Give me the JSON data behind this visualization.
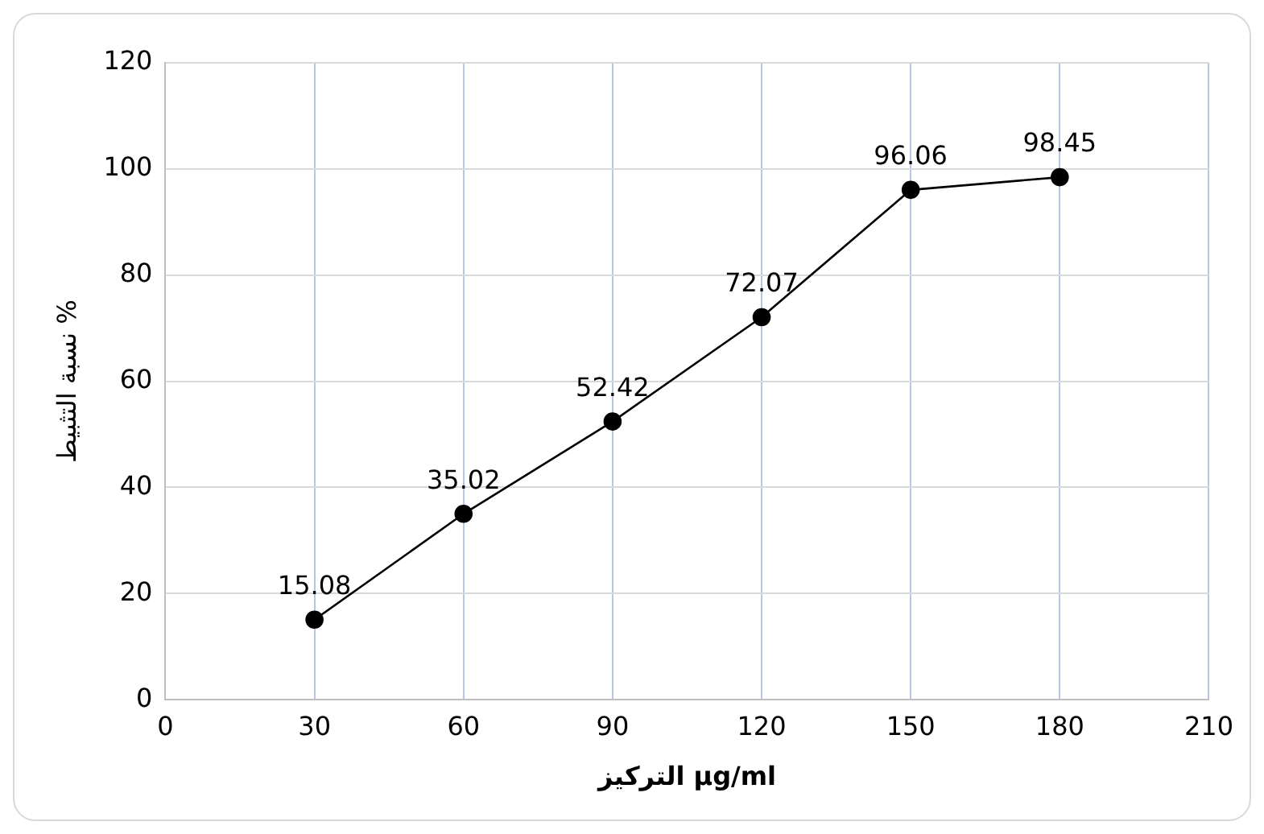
{
  "chart_data": {
    "type": "line",
    "xlabel": "التركيز µg/ml",
    "ylabel": "نسبة التثبيط %",
    "x": [
      30,
      60,
      90,
      120,
      150,
      180
    ],
    "series": [
      {
        "color": "#000000",
        "values": [
          15.08,
          35.02,
          52.42,
          72.07,
          96.06,
          98.45
        ]
      }
    ],
    "xlim": [
      0,
      210
    ],
    "xticks": [
      0,
      30,
      60,
      90,
      120,
      150,
      180,
      210
    ],
    "ylim": [
      0,
      120
    ],
    "yticks": [
      0,
      20,
      40,
      60,
      80,
      100,
      120
    ],
    "grid": true,
    "legend": false,
    "marker": "circle",
    "line_style": "solid",
    "data_labels": true
  }
}
